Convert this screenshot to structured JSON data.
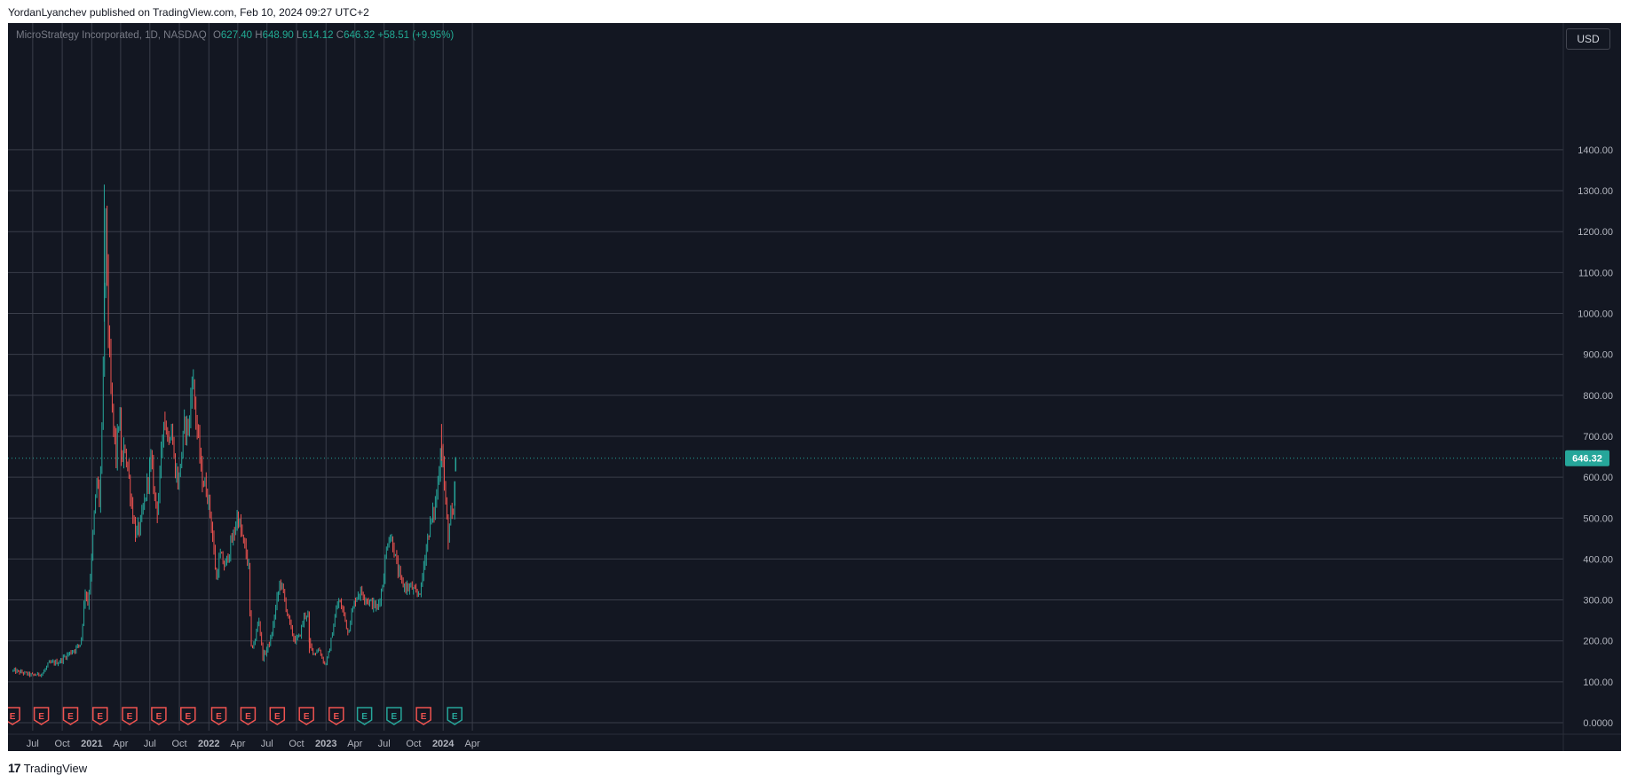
{
  "header": {
    "text": "YordanLyanchev published on TradingView.com, Feb 10, 2024 09:27 UTC+2"
  },
  "legend": {
    "symbol": "MicroStrategy Incorporated, 1D, NASDAQ",
    "o_label": "O",
    "o_value": "627.40",
    "h_label": "H",
    "h_value": "648.90",
    "l_label": "L",
    "l_value": "614.12",
    "c_label": "C",
    "c_value": "646.32",
    "change": "+58.51 (+9.95%)"
  },
  "currency_button": "USD",
  "footer": {
    "logo_glyph": "17",
    "brand": "TradingView"
  },
  "colors": {
    "background": "#131722",
    "grid": "#3a3e4a",
    "up": "#26a69a",
    "down": "#ef5350",
    "axis_text": "#b2b5be",
    "last_price": "#26a69a",
    "earnings_red": "#ef5350",
    "earnings_green": "#26a69a"
  },
  "chart_data": {
    "type": "candlestick",
    "title": "MicroStrategy Incorporated, 1D, NASDAQ",
    "last_price_label": "646.32",
    "ylim": [
      0,
      1400
    ],
    "y_ticks": [
      "0.0000",
      "100.00",
      "200.00",
      "300.00",
      "400.00",
      "500.00",
      "600.00",
      "700.00",
      "800.00",
      "900.00",
      "1000.00",
      "1100.00",
      "1200.00",
      "1300.00",
      "1400.00"
    ],
    "x_ticks": [
      "Jul",
      "Oct",
      "2021",
      "Apr",
      "Jul",
      "Oct",
      "2022",
      "Apr",
      "Jul",
      "Oct",
      "2023",
      "Apr",
      "Jul",
      "Oct",
      "2024",
      "Apr"
    ],
    "grid": true,
    "price_path": [
      [
        "2020-05-01",
        127
      ],
      [
        "2020-06-01",
        122
      ],
      [
        "2020-07-01",
        116
      ],
      [
        "2020-08-01",
        120
      ],
      [
        "2020-08-20",
        145
      ],
      [
        "2020-09-20",
        148
      ],
      [
        "2020-10-15",
        165
      ],
      [
        "2020-11-10",
        180
      ],
      [
        "2020-11-28",
        195
      ],
      [
        "2020-12-05",
        260
      ],
      [
        "2020-12-12",
        330
      ],
      [
        "2020-12-20",
        290
      ],
      [
        "2020-12-31",
        390
      ],
      [
        "2021-01-08",
        500
      ],
      [
        "2021-01-18",
        600
      ],
      [
        "2021-01-25",
        540
      ],
      [
        "2021-02-02",
        700
      ],
      [
        "2021-02-09",
        1000
      ],
      [
        "2021-02-12",
        1250
      ],
      [
        "2021-02-17",
        1150
      ],
      [
        "2021-02-22",
        950
      ],
      [
        "2021-03-02",
        800
      ],
      [
        "2021-03-10",
        720
      ],
      [
        "2021-03-18",
        650
      ],
      [
        "2021-03-28",
        760
      ],
      [
        "2021-04-05",
        620
      ],
      [
        "2021-04-14",
        680
      ],
      [
        "2021-04-25",
        610
      ],
      [
        "2021-05-07",
        520
      ],
      [
        "2021-05-18",
        460
      ],
      [
        "2021-06-01",
        480
      ],
      [
        "2021-06-15",
        540
      ],
      [
        "2021-06-25",
        600
      ],
      [
        "2021-07-05",
        640
      ],
      [
        "2021-07-15",
        560
      ],
      [
        "2021-07-25",
        520
      ],
      [
        "2021-08-05",
        640
      ],
      [
        "2021-08-13",
        760
      ],
      [
        "2021-08-25",
        700
      ],
      [
        "2021-09-06",
        720
      ],
      [
        "2021-09-15",
        640
      ],
      [
        "2021-09-28",
        580
      ],
      [
        "2021-10-08",
        660
      ],
      [
        "2021-10-18",
        730
      ],
      [
        "2021-11-01",
        720
      ],
      [
        "2021-11-09",
        860
      ],
      [
        "2021-11-18",
        780
      ],
      [
        "2021-11-30",
        680
      ],
      [
        "2021-12-10",
        600
      ],
      [
        "2021-12-28",
        560
      ],
      [
        "2022-01-10",
        480
      ],
      [
        "2022-01-24",
        350
      ],
      [
        "2022-02-05",
        410
      ],
      [
        "2022-02-20",
        380
      ],
      [
        "2022-03-05",
        420
      ],
      [
        "2022-03-20",
        460
      ],
      [
        "2022-03-31",
        510
      ],
      [
        "2022-04-10",
        470
      ],
      [
        "2022-04-25",
        420
      ],
      [
        "2022-05-05",
        380
      ],
      [
        "2022-05-12",
        180
      ],
      [
        "2022-05-25",
        200
      ],
      [
        "2022-06-05",
        260
      ],
      [
        "2022-06-18",
        160
      ],
      [
        "2022-07-01",
        180
      ],
      [
        "2022-07-15",
        210
      ],
      [
        "2022-07-28",
        280
      ],
      [
        "2022-08-12",
        350
      ],
      [
        "2022-08-25",
        300
      ],
      [
        "2022-09-10",
        240
      ],
      [
        "2022-09-25",
        200
      ],
      [
        "2022-10-10",
        210
      ],
      [
        "2022-10-25",
        260
      ],
      [
        "2022-11-05",
        270
      ],
      [
        "2022-11-10",
        190
      ],
      [
        "2022-11-25",
        170
      ],
      [
        "2022-12-10",
        180
      ],
      [
        "2022-12-29",
        140
      ],
      [
        "2023-01-10",
        170
      ],
      [
        "2023-01-25",
        240
      ],
      [
        "2023-02-08",
        300
      ],
      [
        "2023-02-25",
        270
      ],
      [
        "2023-03-10",
        220
      ],
      [
        "2023-03-20",
        260
      ],
      [
        "2023-04-05",
        310
      ],
      [
        "2023-04-20",
        320
      ],
      [
        "2023-05-10",
        300
      ],
      [
        "2023-05-25",
        290
      ],
      [
        "2023-06-10",
        280
      ],
      [
        "2023-06-25",
        330
      ],
      [
        "2023-07-14",
        460
      ],
      [
        "2023-07-28",
        440
      ],
      [
        "2023-08-10",
        380
      ],
      [
        "2023-08-25",
        340
      ],
      [
        "2023-09-10",
        330
      ],
      [
        "2023-09-25",
        330
      ],
      [
        "2023-10-10",
        310
      ],
      [
        "2023-10-25",
        330
      ],
      [
        "2023-11-05",
        410
      ],
      [
        "2023-11-20",
        480
      ],
      [
        "2023-12-05",
        520
      ],
      [
        "2023-12-15",
        580
      ],
      [
        "2023-12-27",
        690
      ],
      [
        "2024-01-03",
        600
      ],
      [
        "2024-01-10",
        520
      ],
      [
        "2024-01-17",
        450
      ],
      [
        "2024-01-24",
        510
      ],
      [
        "2024-02-02",
        495
      ],
      [
        "2024-02-07",
        585
      ],
      [
        "2024-02-09",
        646.32
      ]
    ],
    "earnings_markers": [
      {
        "date": "2020-04-29",
        "kind": "E",
        "color": "red"
      },
      {
        "date": "2020-07-28",
        "kind": "E",
        "color": "red"
      },
      {
        "date": "2020-10-27",
        "kind": "E",
        "color": "red"
      },
      {
        "date": "2021-01-27",
        "kind": "E",
        "color": "red"
      },
      {
        "date": "2021-04-29",
        "kind": "E",
        "color": "red"
      },
      {
        "date": "2021-07-29",
        "kind": "E",
        "color": "red"
      },
      {
        "date": "2021-10-28",
        "kind": "E",
        "color": "red"
      },
      {
        "date": "2022-02-01",
        "kind": "E",
        "color": "red"
      },
      {
        "date": "2022-05-03",
        "kind": "E",
        "color": "red"
      },
      {
        "date": "2022-08-02",
        "kind": "E",
        "color": "red"
      },
      {
        "date": "2022-11-01",
        "kind": "E",
        "color": "red"
      },
      {
        "date": "2023-02-02",
        "kind": "E",
        "color": "red"
      },
      {
        "date": "2023-05-01",
        "kind": "E",
        "color": "green"
      },
      {
        "date": "2023-08-01",
        "kind": "E",
        "color": "green"
      },
      {
        "date": "2023-11-01",
        "kind": "E",
        "color": "red"
      },
      {
        "date": "2024-02-06",
        "kind": "E",
        "color": "green"
      }
    ]
  }
}
